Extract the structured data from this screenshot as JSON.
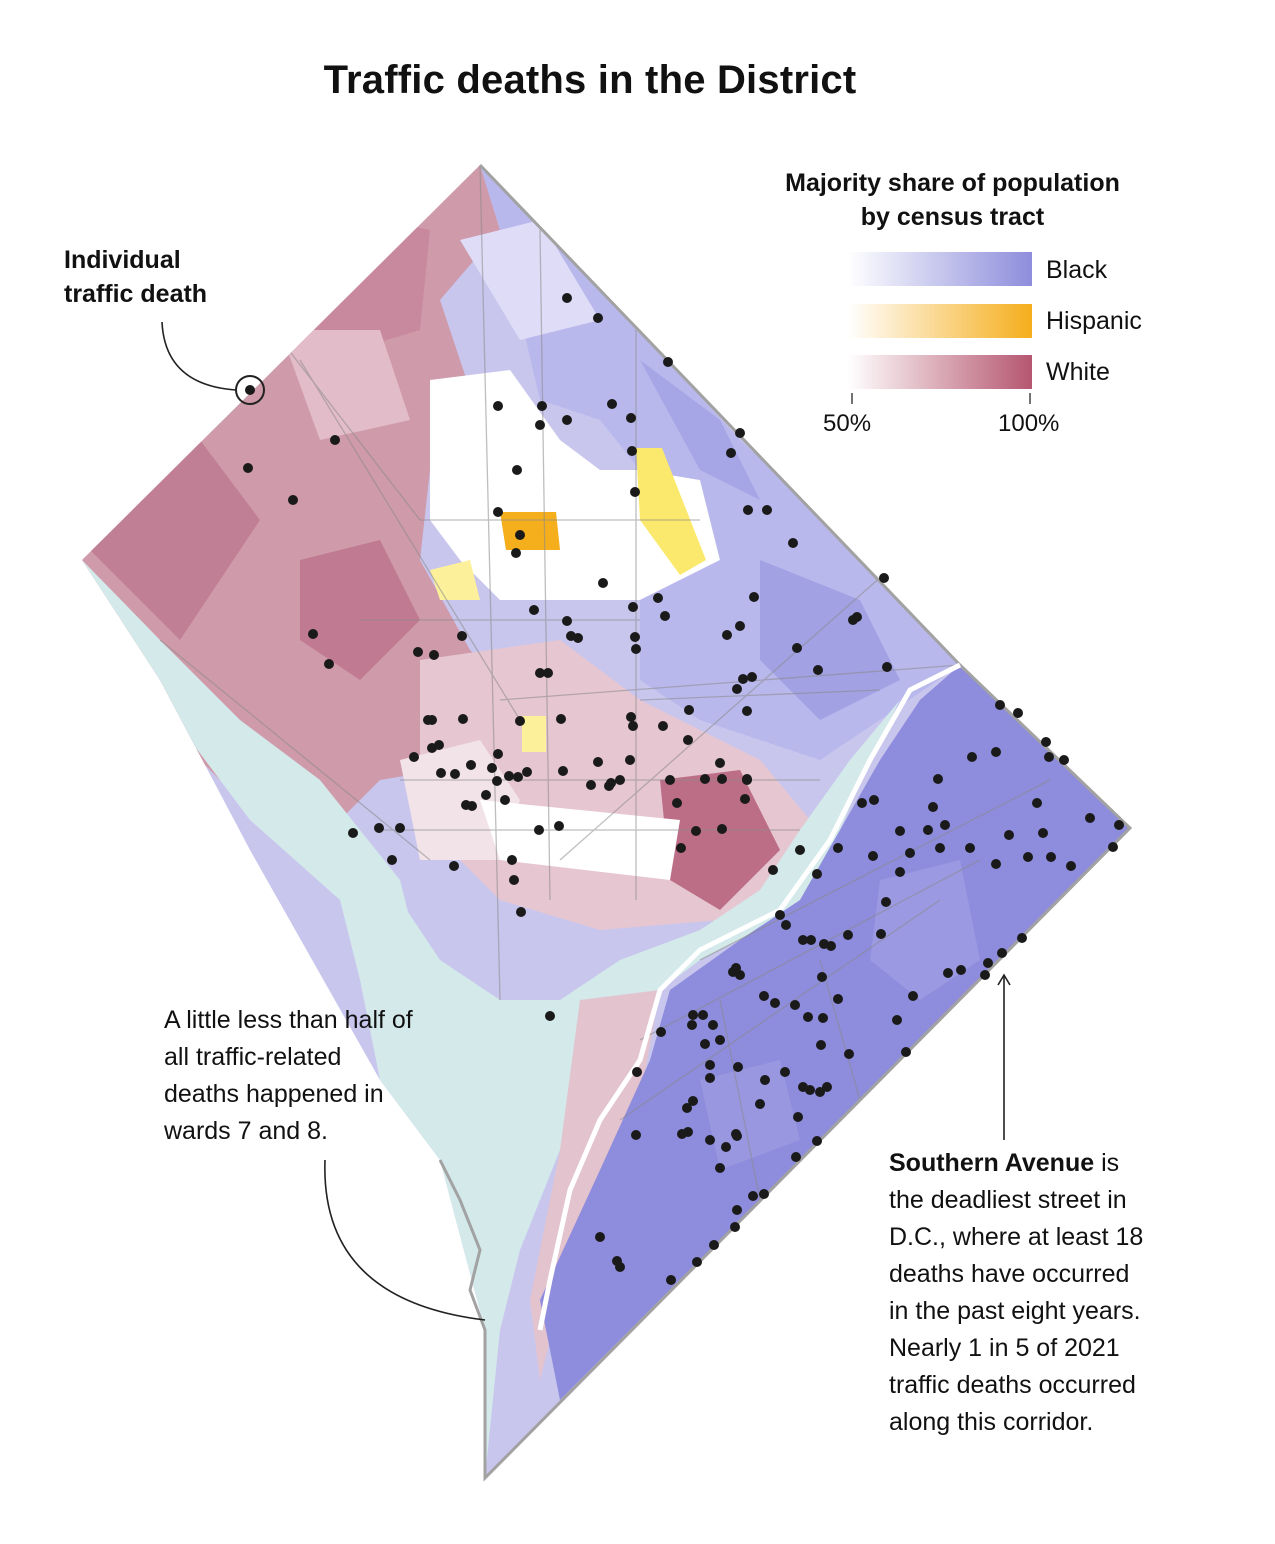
{
  "title": "Traffic deaths in the District",
  "legend": {
    "title_line1": "Majority share of population",
    "title_line2": "by census tract",
    "items": [
      {
        "label": "Black",
        "color_low": "#f1f0fb",
        "color_high": "#8d8ddc"
      },
      {
        "label": "Hispanic",
        "color_low": "#fffbe0",
        "color_high": "#f5ae1c"
      },
      {
        "label": "White",
        "color_low": "#f5e4ea",
        "color_high": "#b5566f"
      }
    ],
    "scale_min": "50%",
    "scale_max": "100%"
  },
  "callouts": {
    "individual_line1": "Individual",
    "individual_line2": "traffic death",
    "wards_lines": [
      "A little less than half of",
      "all traffic-related",
      "deaths happened in",
      "wards 7 and 8."
    ],
    "southern_bold": "Southern Avenue",
    "southern_rest": " is",
    "southern_lines": [
      "the deadliest street in",
      "D.C., where at least 18",
      "deaths have occurred",
      "in the past eight years.",
      "Nearly 1 in 5 of 2021",
      "traffic deaths occurred",
      "along this corridor."
    ]
  },
  "colors": {
    "black_majority": "#a3a3e4",
    "white_majority": "#cf9aaa",
    "hispanic": "#f6c22a",
    "water": "#d3e9ea",
    "dot": "#1a1a1a",
    "outline": "#9a9a9a"
  }
}
